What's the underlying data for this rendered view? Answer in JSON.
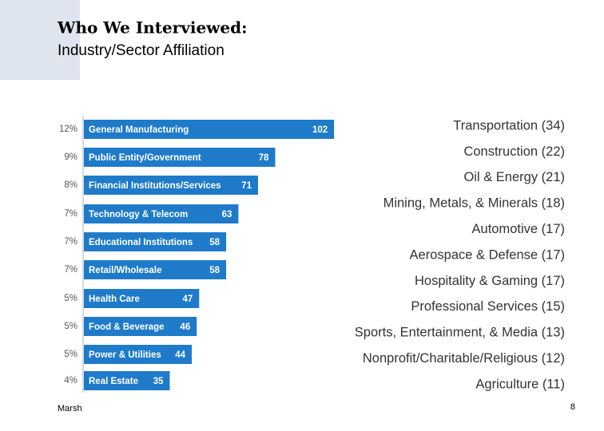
{
  "chart_data": {
    "type": "bar",
    "orientation": "horizontal",
    "title": "Who We Interviewed:",
    "subtitle": "Industry/Sector Affiliation",
    "categories": [
      "General Manufacturing",
      "Public Entity/Government",
      "Financial Institutions/Services",
      "Technology & Telecom",
      "Educational Institutions",
      "Retail/Wholesale",
      "Health Care",
      "Food & Beverage",
      "Power & Utilities",
      "Real Estate"
    ],
    "values": [
      102,
      78,
      71,
      63,
      58,
      58,
      47,
      46,
      44,
      35
    ],
    "color": "#1f7bc9",
    "percentages": {
      "values": [
        12,
        9,
        8,
        7,
        7,
        7,
        5,
        5,
        5,
        4
      ],
      "value_labels": [
        "12%",
        "9%",
        "8%",
        "7%",
        "7%",
        "7%",
        "5%",
        "5%",
        "5%",
        "4%"
      ]
    },
    "other_industries": [
      "Transportation (34)",
      "Construction (22)",
      "Oil & Energy (21)",
      "Mining, Metals, & Minerals (18)",
      "Automotive (17)",
      "Aerospace & Defense (17)",
      "Hospitality & Gaming (17)",
      "Professional Services (15)",
      "Sports, Entertainment, & Media (13)",
      "Nonprofit/Charitable/Religious (12)",
      "Agriculture (11)"
    ]
  },
  "footer": {
    "source": "Marsh",
    "page": "8"
  }
}
